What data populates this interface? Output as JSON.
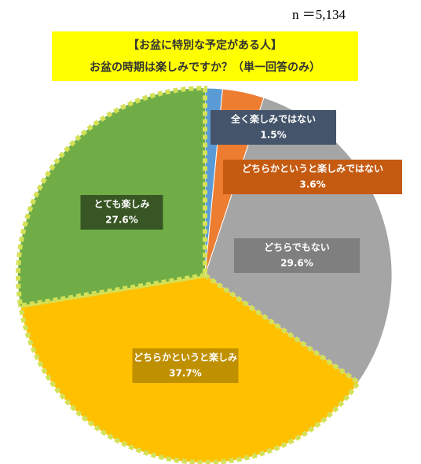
{
  "chart_data": {
    "type": "pie",
    "title": "【お盆に特別な予定がある人】",
    "subtitle": "お盆の時期は楽しみですか？（単一回答のみ）",
    "annotation": "n ＝5,134",
    "categories": [
      "全く楽しみではない",
      "どちらかというと楽しみではない",
      "どちらでもない",
      "どちらかというと楽しみ",
      "とても楽しみ"
    ],
    "values": [
      1.5,
      3.6,
      29.6,
      37.7,
      27.6
    ],
    "value_labels": [
      "1.5%",
      "3.6%",
      "29.6%",
      "37.7%",
      "27.6%"
    ],
    "colors": [
      "#5b9bd5",
      "#ed7d31",
      "#a5a5a5",
      "#ffc000",
      "#70ad47"
    ],
    "label_colors": [
      "#44546a",
      "#c55a11",
      "#7f7f7f",
      "#bf9000",
      "#375623"
    ]
  }
}
